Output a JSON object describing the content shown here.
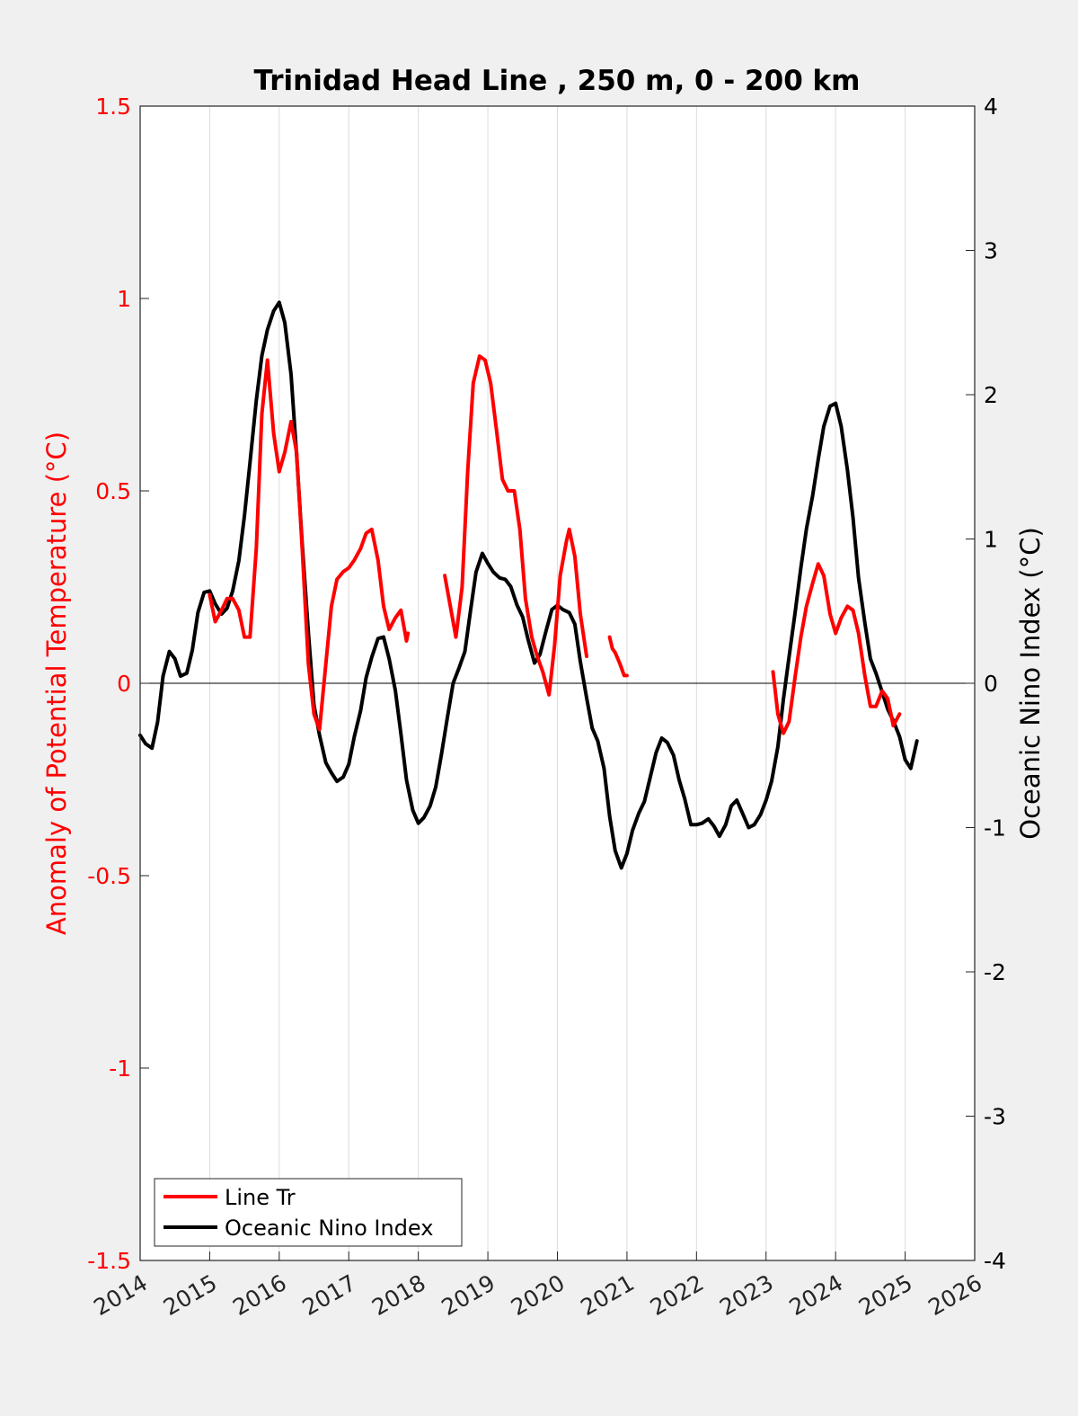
{
  "chart_data": {
    "type": "line",
    "title": "Trinidad Head Line , 250 m, 0 - 200 km",
    "ylabel_left": "Anomaly of Potential Temperature (°C)",
    "ylabel_right": "Oceanic Nino Index (°C)",
    "xlim": [
      2014,
      2026
    ],
    "ylim_left": [
      -1.5,
      1.5
    ],
    "ylim_right": [
      -4,
      4
    ],
    "xticks": [
      "2014",
      "2015",
      "2016",
      "2017",
      "2018",
      "2019",
      "2020",
      "2021",
      "2022",
      "2023",
      "2024",
      "2025",
      "2026"
    ],
    "yticks_left": [
      "-1.5",
      "-1",
      "-0.5",
      "0",
      "0.5",
      "1",
      "1.5"
    ],
    "yticks_right": [
      "-4",
      "-3",
      "-2",
      "-1",
      "0",
      "1",
      "2",
      "3",
      "4"
    ],
    "grid": "vertical",
    "zero_line": true,
    "legend_position": "bottom-left",
    "colors": {
      "line_tr": "#ff0000",
      "oni": "#000000",
      "left_axis": "#ff0000",
      "right_axis": "#000000"
    },
    "series": [
      {
        "name": "Line Tr",
        "axis": "left",
        "segments": [
          [
            [
              2015.0,
              0.23
            ],
            [
              2015.08,
              0.16
            ],
            [
              2015.17,
              0.19
            ],
            [
              2015.25,
              0.22
            ],
            [
              2015.33,
              0.22
            ],
            [
              2015.42,
              0.19
            ],
            [
              2015.5,
              0.12
            ],
            [
              2015.58,
              0.12
            ],
            [
              2015.67,
              0.35
            ],
            [
              2015.75,
              0.7
            ],
            [
              2015.83,
              0.84
            ],
            [
              2015.92,
              0.65
            ],
            [
              2016.0,
              0.55
            ],
            [
              2016.08,
              0.6
            ],
            [
              2016.17,
              0.68
            ],
            [
              2016.25,
              0.6
            ],
            [
              2016.33,
              0.35
            ],
            [
              2016.42,
              0.05
            ],
            [
              2016.5,
              -0.08
            ],
            [
              2016.58,
              -0.12
            ],
            [
              2016.67,
              0.05
            ],
            [
              2016.75,
              0.2
            ],
            [
              2016.83,
              0.27
            ],
            [
              2016.92,
              0.29
            ],
            [
              2017.0,
              0.3
            ],
            [
              2017.08,
              0.32
            ],
            [
              2017.17,
              0.35
            ],
            [
              2017.25,
              0.39
            ],
            [
              2017.33,
              0.4
            ],
            [
              2017.42,
              0.32
            ],
            [
              2017.5,
              0.2
            ],
            [
              2017.58,
              0.14
            ],
            [
              2017.67,
              0.17
            ],
            [
              2017.75,
              0.19
            ],
            [
              2017.83,
              0.11
            ],
            [
              2017.85,
              0.13
            ]
          ],
          [
            [
              2018.38,
              0.28
            ],
            [
              2018.46,
              0.2
            ],
            [
              2018.54,
              0.12
            ],
            [
              2018.63,
              0.25
            ],
            [
              2018.71,
              0.55
            ],
            [
              2018.79,
              0.78
            ],
            [
              2018.88,
              0.85
            ],
            [
              2018.96,
              0.84
            ],
            [
              2019.04,
              0.78
            ],
            [
              2019.13,
              0.65
            ],
            [
              2019.21,
              0.53
            ],
            [
              2019.29,
              0.5
            ],
            [
              2019.38,
              0.5
            ],
            [
              2019.46,
              0.4
            ],
            [
              2019.54,
              0.22
            ],
            [
              2019.63,
              0.12
            ],
            [
              2019.71,
              0.07
            ],
            [
              2019.79,
              0.03
            ],
            [
              2019.88,
              -0.03
            ],
            [
              2019.96,
              0.1
            ],
            [
              2020.04,
              0.28
            ],
            [
              2020.13,
              0.37
            ],
            [
              2020.17,
              0.4
            ],
            [
              2020.25,
              0.33
            ],
            [
              2020.33,
              0.18
            ],
            [
              2020.42,
              0.07
            ]
          ],
          [
            [
              2020.75,
              0.12
            ],
            [
              2020.79,
              0.09
            ],
            [
              2020.83,
              0.08
            ],
            [
              2020.9,
              0.05
            ],
            [
              2020.96,
              0.02
            ],
            [
              2021.0,
              0.02
            ]
          ],
          [
            [
              2023.1,
              0.03
            ],
            [
              2023.17,
              -0.08
            ],
            [
              2023.25,
              -0.13
            ],
            [
              2023.33,
              -0.1
            ],
            [
              2023.42,
              0.02
            ],
            [
              2023.5,
              0.12
            ],
            [
              2023.58,
              0.2
            ],
            [
              2023.67,
              0.26
            ],
            [
              2023.75,
              0.31
            ],
            [
              2023.83,
              0.28
            ],
            [
              2023.92,
              0.18
            ],
            [
              2024.0,
              0.13
            ],
            [
              2024.08,
              0.17
            ],
            [
              2024.17,
              0.2
            ],
            [
              2024.25,
              0.19
            ],
            [
              2024.33,
              0.13
            ],
            [
              2024.42,
              0.02
            ],
            [
              2024.5,
              -0.06
            ],
            [
              2024.58,
              -0.06
            ],
            [
              2024.67,
              -0.02
            ],
            [
              2024.75,
              -0.04
            ],
            [
              2024.83,
              -0.11
            ],
            [
              2024.92,
              -0.08
            ]
          ]
        ]
      },
      {
        "name": "Oceanic Nino Index",
        "axis": "right",
        "segments": [
          [
            [
              2014.0,
              -0.36
            ],
            [
              2014.08,
              -0.42
            ],
            [
              2014.17,
              -0.45
            ],
            [
              2014.25,
              -0.27
            ],
            [
              2014.33,
              0.05
            ],
            [
              2014.42,
              0.22
            ],
            [
              2014.5,
              0.17
            ],
            [
              2014.58,
              0.05
            ],
            [
              2014.67,
              0.07
            ],
            [
              2014.75,
              0.23
            ],
            [
              2014.83,
              0.49
            ],
            [
              2014.92,
              0.63
            ],
            [
              2015.0,
              0.64
            ],
            [
              2015.08,
              0.55
            ],
            [
              2015.17,
              0.48
            ],
            [
              2015.25,
              0.52
            ],
            [
              2015.33,
              0.64
            ],
            [
              2015.42,
              0.85
            ],
            [
              2015.5,
              1.16
            ],
            [
              2015.58,
              1.53
            ],
            [
              2015.67,
              1.96
            ],
            [
              2015.75,
              2.27
            ],
            [
              2015.83,
              2.45
            ],
            [
              2015.92,
              2.58
            ],
            [
              2016.0,
              2.64
            ],
            [
              2016.08,
              2.5
            ],
            [
              2016.17,
              2.14
            ],
            [
              2016.25,
              1.58
            ],
            [
              2016.33,
              0.97
            ],
            [
              2016.42,
              0.35
            ],
            [
              2016.5,
              -0.15
            ],
            [
              2016.58,
              -0.36
            ],
            [
              2016.67,
              -0.55
            ],
            [
              2016.75,
              -0.62
            ],
            [
              2016.83,
              -0.68
            ],
            [
              2016.92,
              -0.65
            ],
            [
              2017.0,
              -0.56
            ],
            [
              2017.08,
              -0.37
            ],
            [
              2017.17,
              -0.19
            ],
            [
              2017.25,
              0.04
            ],
            [
              2017.33,
              0.18
            ],
            [
              2017.42,
              0.31
            ],
            [
              2017.5,
              0.32
            ],
            [
              2017.58,
              0.17
            ],
            [
              2017.67,
              -0.05
            ],
            [
              2017.75,
              -0.35
            ],
            [
              2017.83,
              -0.67
            ],
            [
              2017.92,
              -0.88
            ],
            [
              2018.0,
              -0.97
            ],
            [
              2018.08,
              -0.93
            ],
            [
              2018.17,
              -0.85
            ],
            [
              2018.25,
              -0.72
            ],
            [
              2018.33,
              -0.5
            ],
            [
              2018.42,
              -0.23
            ],
            [
              2018.5,
              0.0
            ],
            [
              2018.58,
              0.1
            ],
            [
              2018.67,
              0.22
            ],
            [
              2018.75,
              0.5
            ],
            [
              2018.83,
              0.77
            ],
            [
              2018.92,
              0.9
            ],
            [
              2019.0,
              0.83
            ],
            [
              2019.08,
              0.77
            ],
            [
              2019.17,
              0.73
            ],
            [
              2019.25,
              0.72
            ],
            [
              2019.33,
              0.67
            ],
            [
              2019.42,
              0.54
            ],
            [
              2019.5,
              0.46
            ],
            [
              2019.58,
              0.3
            ],
            [
              2019.67,
              0.14
            ],
            [
              2019.75,
              0.2
            ],
            [
              2019.83,
              0.35
            ],
            [
              2019.92,
              0.51
            ],
            [
              2020.0,
              0.54
            ],
            [
              2020.08,
              0.51
            ],
            [
              2020.17,
              0.49
            ],
            [
              2020.25,
              0.41
            ],
            [
              2020.33,
              0.15
            ],
            [
              2020.42,
              -0.1
            ],
            [
              2020.5,
              -0.31
            ],
            [
              2020.58,
              -0.4
            ],
            [
              2020.67,
              -0.59
            ],
            [
              2020.75,
              -0.92
            ],
            [
              2020.83,
              -1.16
            ],
            [
              2020.92,
              -1.28
            ],
            [
              2021.0,
              -1.18
            ],
            [
              2021.08,
              -1.02
            ],
            [
              2021.17,
              -0.9
            ],
            [
              2021.25,
              -0.82
            ],
            [
              2021.33,
              -0.66
            ],
            [
              2021.42,
              -0.48
            ],
            [
              2021.5,
              -0.38
            ],
            [
              2021.58,
              -0.41
            ],
            [
              2021.67,
              -0.5
            ],
            [
              2021.75,
              -0.67
            ],
            [
              2021.83,
              -0.8
            ],
            [
              2021.92,
              -0.98
            ],
            [
              2022.0,
              -0.98
            ],
            [
              2022.08,
              -0.97
            ],
            [
              2022.17,
              -0.94
            ],
            [
              2022.25,
              -0.99
            ],
            [
              2022.33,
              -1.06
            ],
            [
              2022.42,
              -0.98
            ],
            [
              2022.5,
              -0.85
            ],
            [
              2022.58,
              -0.81
            ],
            [
              2022.67,
              -0.91
            ],
            [
              2022.75,
              -1.0
            ],
            [
              2022.83,
              -0.98
            ],
            [
              2022.92,
              -0.91
            ],
            [
              2023.0,
              -0.81
            ],
            [
              2023.08,
              -0.68
            ],
            [
              2023.17,
              -0.44
            ],
            [
              2023.25,
              -0.11
            ],
            [
              2023.33,
              0.18
            ],
            [
              2023.42,
              0.5
            ],
            [
              2023.5,
              0.8
            ],
            [
              2023.58,
              1.07
            ],
            [
              2023.67,
              1.3
            ],
            [
              2023.75,
              1.55
            ],
            [
              2023.83,
              1.78
            ],
            [
              2023.92,
              1.92
            ],
            [
              2024.0,
              1.94
            ],
            [
              2024.08,
              1.78
            ],
            [
              2024.17,
              1.48
            ],
            [
              2024.25,
              1.15
            ],
            [
              2024.33,
              0.73
            ],
            [
              2024.42,
              0.42
            ],
            [
              2024.5,
              0.17
            ],
            [
              2024.58,
              0.07
            ],
            [
              2024.67,
              -0.06
            ],
            [
              2024.75,
              -0.18
            ],
            [
              2024.83,
              -0.26
            ],
            [
              2024.92,
              -0.37
            ],
            [
              2025.0,
              -0.53
            ],
            [
              2025.08,
              -0.59
            ],
            [
              2025.17,
              -0.4
            ]
          ]
        ]
      }
    ]
  },
  "legend": {
    "items": [
      {
        "label": "Line Tr",
        "color": "#ff0000"
      },
      {
        "label": "Oceanic Nino Index",
        "color": "#000000"
      }
    ]
  }
}
